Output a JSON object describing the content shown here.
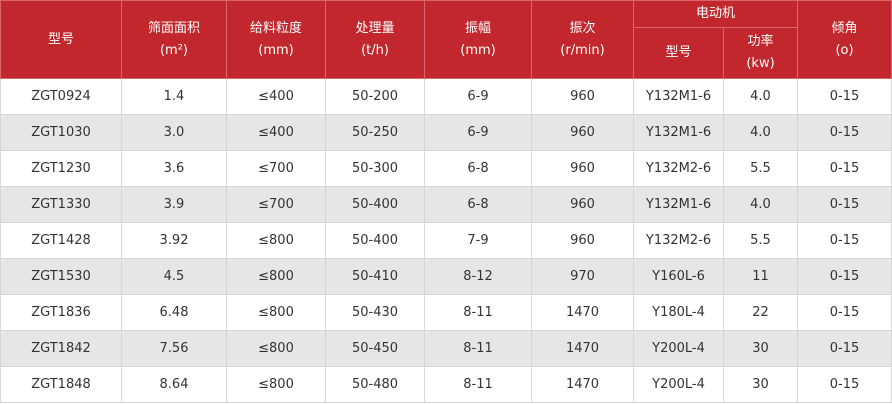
{
  "table": {
    "columns_left": [
      [
        "型号"
      ],
      [
        "筛面面积",
        "(m²)"
      ],
      [
        "给料粒度",
        "(mm)"
      ],
      [
        "处理量",
        "(t/h)"
      ],
      [
        "振幅",
        "(mm)"
      ],
      [
        "振次",
        "(r/min)"
      ]
    ],
    "motor_group": "电动机",
    "motor_columns": [
      [
        "型号"
      ],
      [
        "功率",
        "(kw)"
      ]
    ],
    "columns_right": [
      [
        "倾角",
        "(o)"
      ]
    ],
    "rows": [
      [
        "ZGT0924",
        "1.4",
        "≤400",
        "50-200",
        "6-9",
        "960",
        "Y132M1-6",
        "4.0",
        "0-15"
      ],
      [
        "ZGT1030",
        "3.0",
        "≤400",
        "50-250",
        "6-9",
        "960",
        "Y132M1-6",
        "4.0",
        "0-15"
      ],
      [
        "ZGT1230",
        "3.6",
        "≤700",
        "50-300",
        "6-8",
        "960",
        "Y132M2-6",
        "5.5",
        "0-15"
      ],
      [
        "ZGT1330",
        "3.9",
        "≤700",
        "50-400",
        "6-8",
        "960",
        "Y132M1-6",
        "4.0",
        "0-15"
      ],
      [
        "ZGT1428",
        "3.92",
        "≤800",
        "50-400",
        "7-9",
        "960",
        "Y132M2-6",
        "5.5",
        "0-15"
      ],
      [
        "ZGT1530",
        "4.5",
        "≤800",
        "50-410",
        "8-12",
        "970",
        "Y160L-6",
        "11",
        "0-15"
      ],
      [
        "ZGT1836",
        "6.48",
        "≤800",
        "50-430",
        "8-11",
        "1470",
        "Y180L-4",
        "22",
        "0-15"
      ],
      [
        "ZGT1842",
        "7.56",
        "≤800",
        "50-450",
        "8-11",
        "1470",
        "Y200L-4",
        "30",
        "0-15"
      ],
      [
        "ZGT1848",
        "8.64",
        "≤800",
        "50-480",
        "8-11",
        "1470",
        "Y200L-4",
        "30",
        "0-15"
      ]
    ]
  }
}
